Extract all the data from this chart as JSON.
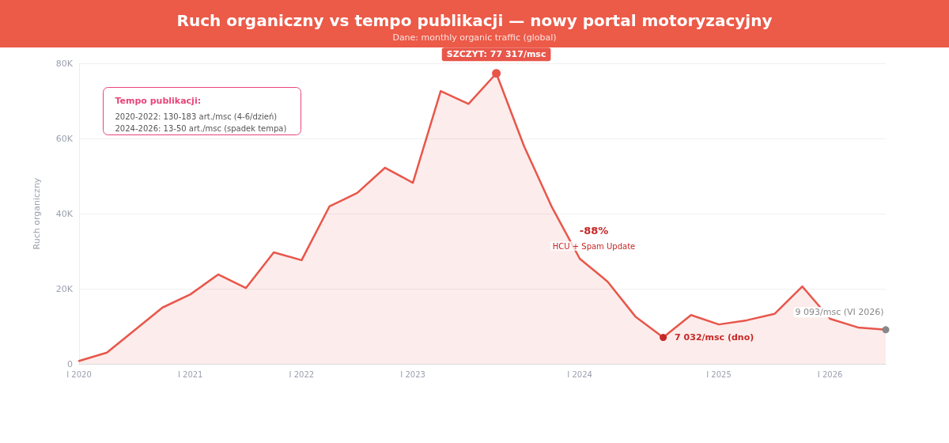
{
  "chart_data": {
    "type": "area",
    "title": "Ruch organiczny vs tempo publikacji — nowy portal motoryzacyjny",
    "subtitle": "Dane: monthly organic traffic (global)",
    "ylabel": "Ruch organiczny",
    "categories": [
      "I 2020",
      null,
      null,
      null,
      "I 2021",
      null,
      null,
      null,
      "I 2022",
      null,
      null,
      null,
      "I 2023",
      null,
      null,
      null,
      null,
      null,
      "I 2024",
      null,
      null,
      null,
      null,
      "I 2025",
      null,
      null,
      null,
      "I 2026",
      null,
      null
    ],
    "ylim": [
      0,
      80000
    ],
    "yticks": [
      {
        "value": 0,
        "label": "0"
      },
      {
        "value": 20000,
        "label": "20K"
      },
      {
        "value": 40000,
        "label": "40K"
      },
      {
        "value": 60000,
        "label": "60K"
      },
      {
        "value": 80000,
        "label": "80K"
      }
    ],
    "series": [
      {
        "color": "#e8564a",
        "values": [
          800,
          3000,
          9000,
          15000,
          18500,
          23800,
          20200,
          29700,
          27600,
          41900,
          45500,
          52200,
          48200,
          72600,
          69200,
          77317,
          57900,
          41700,
          28000,
          21900,
          12600,
          7032,
          13000,
          10500,
          11600,
          13300,
          20600,
          12000,
          9700,
          9093
        ]
      }
    ],
    "annotations": [
      "SZCZYT: 77 317/msc",
      "7 032/msc (dno)",
      "9 093/msc (VI 2026)",
      "Tempo publikacji:",
      "2020-2022: 130-183 art./msc (4-6/dzień)",
      "2024-2026: 13-50 art./msc (spadek tempa)",
      "-88%",
      "HCU + Spam Update"
    ],
    "grid": "y",
    "marker": "none",
    "line_style": "solid"
  }
}
